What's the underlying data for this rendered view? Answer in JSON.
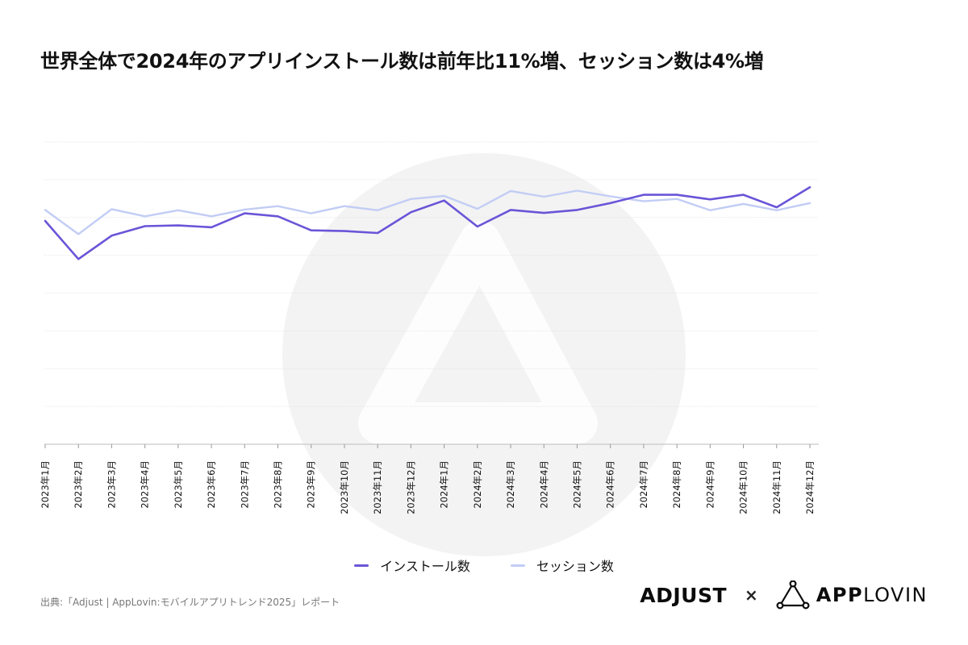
{
  "title": "世界全体で2024年のアプリインストール数は前年比11%増、セッション数は4%増",
  "source": "出典:「Adjust | AppLovin:モバイルアプリトレンド2025」レポート",
  "legend": {
    "installs": "インストール数",
    "sessions": "セッション数"
  },
  "logos": {
    "adjust": "ADJUST",
    "times": "×",
    "applovin_bold": "APP",
    "applovin_light": "LOVIN",
    "applovin_icon": "applovin-triangle-icon"
  },
  "colors": {
    "installs": "#6a55d8",
    "sessions": "#c2cdf5",
    "grid": "#dcdcdc",
    "watermark": "#f3f3f3"
  },
  "chart_data": {
    "type": "line",
    "title": "世界全体で2024年のアプリインストール数は前年比11%増、セッション数は4%増",
    "xlabel": "",
    "ylabel": "",
    "grid": true,
    "legend_position": "bottom-center",
    "categories": [
      "2023年1月",
      "2023年2月",
      "2023年3月",
      "2023年4月",
      "2023年5月",
      "2023年6月",
      "2023年7月",
      "2023年8月",
      "2023年9月",
      "2023年10月",
      "2023年11月",
      "2023年12月",
      "2024年1月",
      "2024年2月",
      "2024年3月",
      "2024年4月",
      "2024年5月",
      "2024年6月",
      "2024年7月",
      "2024年8月",
      "2024年9月",
      "2024年10月",
      "2024年11月",
      "2024年12月"
    ],
    "ylim": [
      0,
      8
    ],
    "series": [
      {
        "name": "インストール数",
        "key": "installs",
        "values": [
          5.91,
          4.9,
          5.52,
          5.77,
          5.79,
          5.74,
          6.11,
          6.03,
          5.66,
          5.64,
          5.59,
          6.14,
          6.45,
          5.76,
          6.2,
          6.12,
          6.2,
          6.38,
          6.6,
          6.6,
          6.48,
          6.6,
          6.27,
          6.8
        ]
      },
      {
        "name": "セッション数",
        "key": "sessions",
        "values": [
          6.2,
          5.56,
          6.22,
          6.03,
          6.19,
          6.03,
          6.21,
          6.3,
          6.11,
          6.3,
          6.19,
          6.49,
          6.57,
          6.23,
          6.7,
          6.55,
          6.71,
          6.56,
          6.43,
          6.49,
          6.19,
          6.36,
          6.19,
          6.38
        ]
      }
    ]
  }
}
